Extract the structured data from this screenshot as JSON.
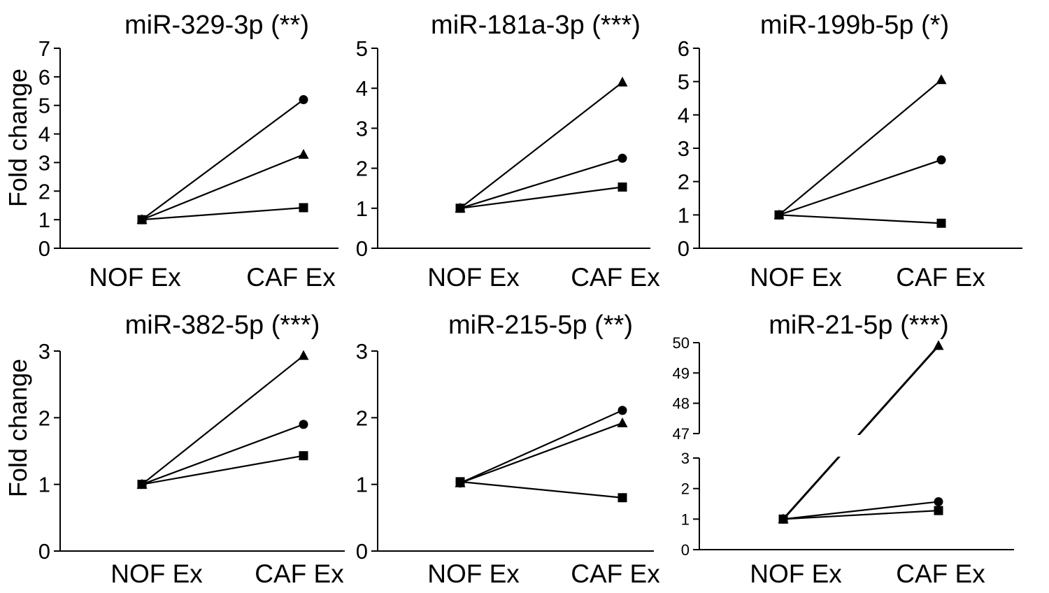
{
  "figure": {
    "y_axis_label": "Fold change"
  },
  "chart_data": [
    {
      "type": "line",
      "title": "miR-329-3p (**)",
      "ylabel": "Fold change",
      "categories": [
        "NOF Ex",
        "CAF Ex"
      ],
      "ylim": [
        0,
        7
      ],
      "yticks": [
        0,
        1,
        2,
        3,
        4,
        5,
        6,
        7
      ],
      "series": [
        {
          "marker": "circle",
          "values": [
            1,
            5.2
          ]
        },
        {
          "marker": "triangle",
          "values": [
            1,
            3.28
          ]
        },
        {
          "marker": "square",
          "values": [
            1,
            1.42
          ]
        }
      ]
    },
    {
      "type": "line",
      "title": "miR-181a-3p (***)",
      "categories": [
        "NOF Ex",
        "CAF Ex"
      ],
      "ylim": [
        0,
        5
      ],
      "yticks": [
        0,
        1,
        2,
        3,
        4,
        5
      ],
      "series": [
        {
          "marker": "triangle",
          "values": [
            1,
            4.15
          ]
        },
        {
          "marker": "circle",
          "values": [
            1,
            2.25
          ]
        },
        {
          "marker": "square",
          "values": [
            1,
            1.53
          ]
        }
      ]
    },
    {
      "type": "line",
      "title": "miR-199b-5p (*)",
      "categories": [
        "NOF Ex",
        "CAF Ex"
      ],
      "ylim": [
        0,
        6
      ],
      "yticks": [
        0,
        1,
        2,
        3,
        4,
        5,
        6
      ],
      "series": [
        {
          "marker": "triangle",
          "values": [
            1,
            5.05
          ]
        },
        {
          "marker": "circle",
          "values": [
            1,
            2.65
          ]
        },
        {
          "marker": "square",
          "values": [
            1,
            0.75
          ]
        }
      ]
    },
    {
      "type": "line",
      "title": "miR-382-5p (***)",
      "ylabel": "Fold change",
      "categories": [
        "NOF Ex",
        "CAF Ex"
      ],
      "ylim": [
        0,
        3
      ],
      "yticks": [
        0,
        1,
        2,
        3
      ],
      "series": [
        {
          "marker": "triangle",
          "values": [
            1,
            2.93
          ]
        },
        {
          "marker": "circle",
          "values": [
            1,
            1.9
          ]
        },
        {
          "marker": "square",
          "values": [
            1,
            1.43
          ]
        }
      ]
    },
    {
      "type": "line",
      "title": "miR-215-5p (**)",
      "categories": [
        "NOF Ex",
        "CAF Ex"
      ],
      "ylim": [
        0,
        3
      ],
      "yticks": [
        0,
        1,
        2,
        3
      ],
      "series": [
        {
          "marker": "circle",
          "values": [
            1.02,
            2.11
          ]
        },
        {
          "marker": "triangle",
          "values": [
            1.02,
            1.92
          ]
        },
        {
          "marker": "square",
          "values": [
            1.04,
            0.8
          ]
        }
      ]
    },
    {
      "type": "line",
      "title": "miR-21-5p (***)",
      "categories": [
        "NOF Ex",
        "CAF Ex"
      ],
      "broken_axis": true,
      "ylim_lower": [
        0,
        3
      ],
      "yticks_lower": [
        0,
        1,
        2,
        3
      ],
      "ylim_upper": [
        47,
        50
      ],
      "yticks_upper": [
        47,
        48,
        49,
        50
      ],
      "series": [
        {
          "marker": "triangle",
          "values": [
            1,
            49.9
          ]
        },
        {
          "marker": "circle",
          "values": [
            1,
            1.57
          ]
        },
        {
          "marker": "square",
          "values": [
            1,
            1.28
          ]
        }
      ]
    }
  ]
}
